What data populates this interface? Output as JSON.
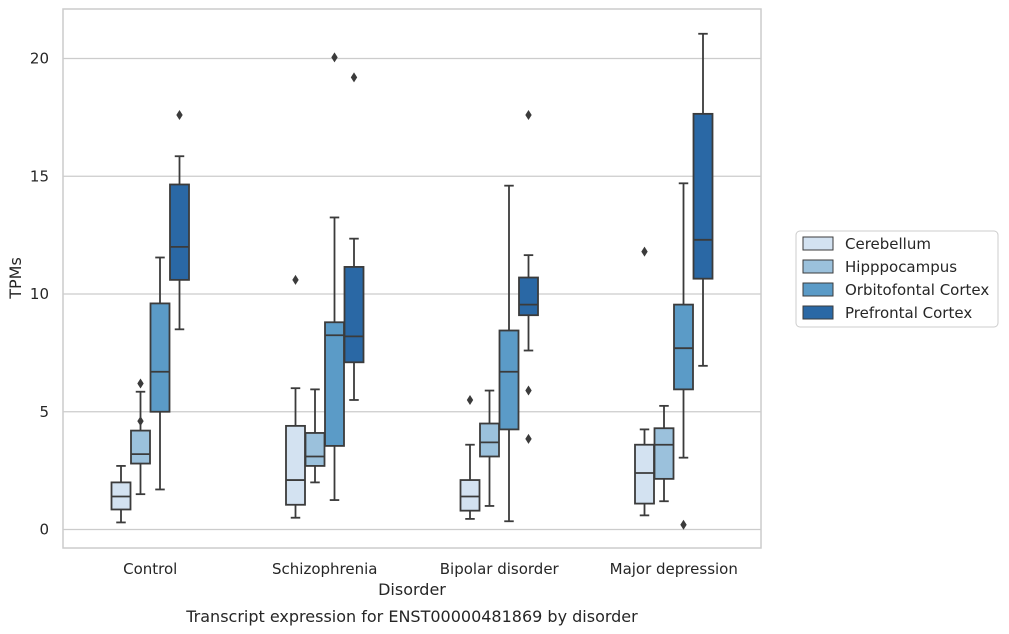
{
  "chart_data": {
    "type": "box",
    "title": "",
    "caption": "Transcript expression for ENST00000481869 by disorder",
    "xlabel": "Disorder",
    "ylabel": "TPMs",
    "ylim": [
      -0.7,
      22
    ],
    "yticks": [
      0,
      5,
      10,
      15,
      20
    ],
    "grid": "horizontal",
    "legend_position": "right",
    "categories": [
      "Control",
      "Schizophrenia",
      "Bipolar disorder",
      "Major depression"
    ],
    "series": [
      {
        "name": "Cerebellum",
        "color": "#d3e2f1",
        "boxes": [
          {
            "whislo": 0.3,
            "q1": 0.85,
            "med": 1.4,
            "q3": 2.0,
            "whishi": 2.7,
            "fliers": []
          },
          {
            "whislo": 0.5,
            "q1": 1.05,
            "med": 2.1,
            "q3": 4.4,
            "whishi": 6.0,
            "fliers": [
              10.6
            ]
          },
          {
            "whislo": 0.45,
            "q1": 0.8,
            "med": 1.4,
            "q3": 2.1,
            "whishi": 3.6,
            "fliers": [
              5.5
            ]
          },
          {
            "whislo": 0.6,
            "q1": 1.1,
            "med": 2.4,
            "q3": 3.6,
            "whishi": 4.25,
            "fliers": [
              11.8
            ]
          }
        ]
      },
      {
        "name": "Hipppocampus",
        "color": "#9bc1dc",
        "boxes": [
          {
            "whislo": 1.5,
            "q1": 2.8,
            "med": 3.2,
            "q3": 4.2,
            "whishi": 5.85,
            "fliers": [
              4.6,
              6.2
            ]
          },
          {
            "whislo": 2.0,
            "q1": 2.7,
            "med": 3.1,
            "q3": 4.1,
            "whishi": 5.95,
            "fliers": []
          },
          {
            "whislo": 1.0,
            "q1": 3.1,
            "med": 3.7,
            "q3": 4.5,
            "whishi": 5.9,
            "fliers": []
          },
          {
            "whislo": 1.2,
            "q1": 2.15,
            "med": 3.6,
            "q3": 4.3,
            "whishi": 5.25,
            "fliers": []
          }
        ]
      },
      {
        "name": "Orbitofontal Cortex",
        "color": "#5b9bc7",
        "boxes": [
          {
            "whislo": 1.7,
            "q1": 5.0,
            "med": 6.7,
            "q3": 9.6,
            "whishi": 11.55,
            "fliers": []
          },
          {
            "whislo": 1.25,
            "q1": 3.55,
            "med": 8.25,
            "q3": 8.8,
            "whishi": 13.25,
            "fliers": [
              20.05
            ]
          },
          {
            "whislo": 0.35,
            "q1": 4.25,
            "med": 6.7,
            "q3": 8.45,
            "whishi": 14.6,
            "fliers": []
          },
          {
            "whislo": 3.05,
            "q1": 5.95,
            "med": 7.7,
            "q3": 9.55,
            "whishi": 14.7,
            "fliers": [
              0.2
            ]
          }
        ]
      },
      {
        "name": "Prefrontal Cortex",
        "color": "#2a68a5",
        "boxes": [
          {
            "whislo": 8.5,
            "q1": 10.6,
            "med": 12.0,
            "q3": 14.65,
            "whishi": 15.85,
            "fliers": [
              17.6
            ]
          },
          {
            "whislo": 5.5,
            "q1": 7.1,
            "med": 8.2,
            "q3": 11.15,
            "whishi": 12.35,
            "fliers": [
              19.2
            ]
          },
          {
            "whislo": 7.6,
            "q1": 9.1,
            "med": 9.55,
            "q3": 10.7,
            "whishi": 11.65,
            "fliers": [
              3.85,
              5.9,
              17.6
            ]
          },
          {
            "whislo": 6.95,
            "q1": 10.65,
            "med": 12.3,
            "q3": 17.65,
            "whishi": 21.05,
            "fliers": []
          }
        ]
      }
    ]
  }
}
